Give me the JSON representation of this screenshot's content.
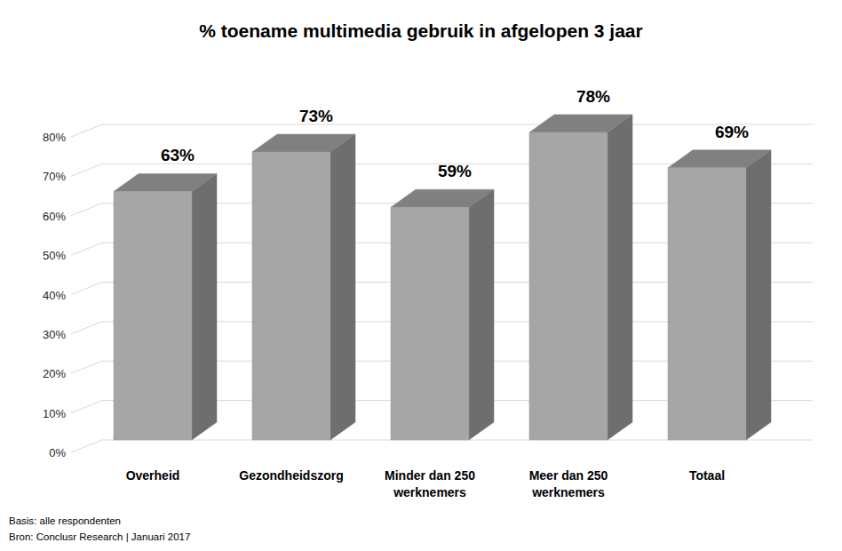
{
  "chart_data": {
    "type": "bar",
    "title": "% toename multimedia gebruik in afgelopen 3 jaar",
    "categories": [
      "Overheid",
      "Gezondheidszorg",
      "Minder dan 250 werknemers",
      "Meer dan 250 werknemers",
      "Totaal"
    ],
    "values": [
      63,
      73,
      59,
      78,
      69
    ],
    "value_labels": [
      "63%",
      "73%",
      "59%",
      "78%",
      "69%"
    ],
    "color": "#a6a6a6",
    "ylim": [
      0,
      80
    ],
    "yticks": [
      {
        "value": 0,
        "label": "0%"
      },
      {
        "value": 10,
        "label": "10%"
      },
      {
        "value": 20,
        "label": "20%"
      },
      {
        "value": 30,
        "label": "30%"
      },
      {
        "value": 40,
        "label": "40%"
      },
      {
        "value": 50,
        "label": "50%"
      },
      {
        "value": 60,
        "label": "60%"
      },
      {
        "value": 70,
        "label": "70%"
      },
      {
        "value": 80,
        "label": "80%"
      }
    ],
    "grid": true,
    "data_labels": true,
    "annotations": [
      "Basis: alle respondenten",
      "Bron: Conclusr Research | Januari 2017"
    ]
  }
}
